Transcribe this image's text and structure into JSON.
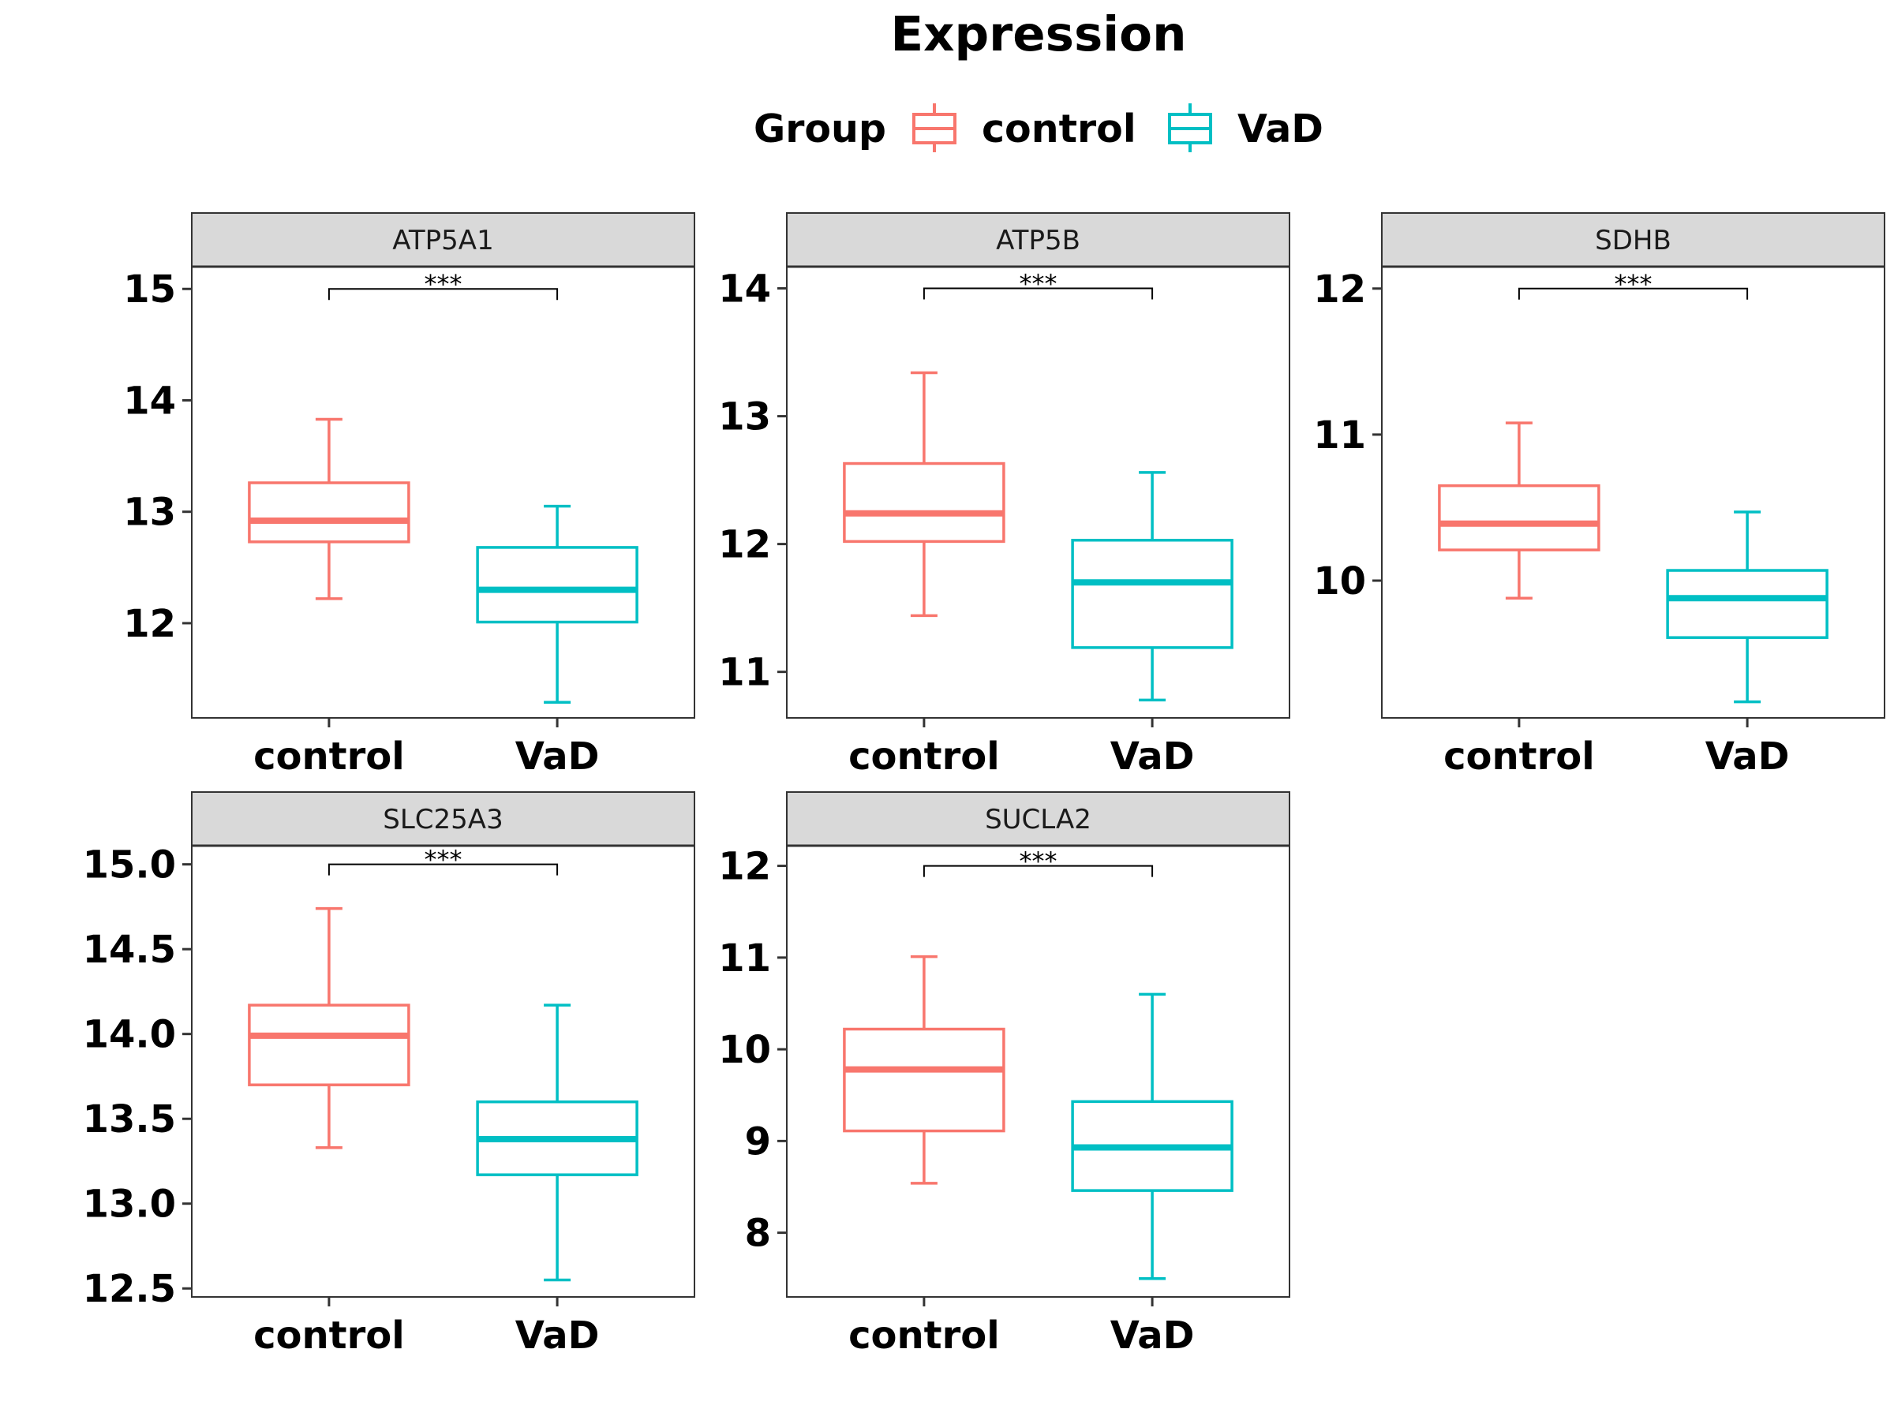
{
  "chart_data": {
    "type": "boxplot",
    "title": "Expression",
    "legend": {
      "title": "Group",
      "position": "top",
      "entries": [
        {
          "name": "control",
          "color": "#F8766D"
        },
        {
          "name": "VaD",
          "color": "#00BFC4"
        }
      ]
    },
    "categories": [
      "control",
      "VaD"
    ],
    "grid": false,
    "panels": [
      {
        "name": "ATP5A1",
        "ylim": [
          11.15,
          15.2
        ],
        "yticks": [
          12,
          13,
          14,
          15
        ],
        "ytick_labels": [
          "12",
          "13",
          "14",
          "15"
        ],
        "significance": {
          "label": "***",
          "y": 15.0
        },
        "boxes": [
          {
            "group": "control",
            "min": 12.22,
            "q1": 12.73,
            "median": 12.92,
            "q3": 13.26,
            "max": 13.83
          },
          {
            "group": "VaD",
            "min": 11.29,
            "q1": 12.01,
            "median": 12.3,
            "q3": 12.68,
            "max": 13.05
          }
        ]
      },
      {
        "name": "ATP5B",
        "ylim": [
          10.64,
          14.17
        ],
        "yticks": [
          11,
          12,
          13,
          14
        ],
        "ytick_labels": [
          "11",
          "12",
          "13",
          "14"
        ],
        "significance": {
          "label": "***",
          "y": 14.0
        },
        "boxes": [
          {
            "group": "control",
            "min": 11.44,
            "q1": 12.02,
            "median": 12.24,
            "q3": 12.63,
            "max": 13.34
          },
          {
            "group": "VaD",
            "min": 10.78,
            "q1": 11.19,
            "median": 11.7,
            "q3": 12.03,
            "max": 12.56
          }
        ]
      },
      {
        "name": "SDHB",
        "ylim": [
          9.06,
          12.15
        ],
        "yticks": [
          10,
          11,
          12
        ],
        "ytick_labels": [
          "10",
          "11",
          "12"
        ],
        "significance": {
          "label": "***",
          "y": 12.0
        },
        "boxes": [
          {
            "group": "control",
            "min": 9.88,
            "q1": 10.21,
            "median": 10.39,
            "q3": 10.65,
            "max": 11.08
          },
          {
            "group": "VaD",
            "min": 9.17,
            "q1": 9.61,
            "median": 9.88,
            "q3": 10.07,
            "max": 10.47
          }
        ]
      },
      {
        "name": "SLC25A3",
        "ylim": [
          12.45,
          15.11
        ],
        "yticks": [
          12.5,
          13.0,
          13.5,
          14.0,
          14.5,
          15.0
        ],
        "ytick_labels": [
          "12.5",
          "13.0",
          "13.5",
          "14.0",
          "14.5",
          "15.0"
        ],
        "significance": {
          "label": "***",
          "y": 15.0
        },
        "boxes": [
          {
            "group": "control",
            "min": 13.33,
            "q1": 13.7,
            "median": 13.99,
            "q3": 14.17,
            "max": 14.74
          },
          {
            "group": "VaD",
            "min": 12.55,
            "q1": 13.17,
            "median": 13.38,
            "q3": 13.6,
            "max": 14.17
          }
        ]
      },
      {
        "name": "SUCLA2",
        "ylim": [
          7.3,
          12.22
        ],
        "yticks": [
          8,
          9,
          10,
          11,
          12
        ],
        "ytick_labels": [
          "8",
          "9",
          "10",
          "11",
          "12"
        ],
        "significance": {
          "label": "***",
          "y": 12.0
        },
        "boxes": [
          {
            "group": "control",
            "min": 8.54,
            "q1": 9.11,
            "median": 9.78,
            "q3": 10.22,
            "max": 11.01
          },
          {
            "group": "VaD",
            "min": 7.5,
            "q1": 8.46,
            "median": 8.93,
            "q3": 9.43,
            "max": 10.6
          }
        ]
      }
    ]
  }
}
